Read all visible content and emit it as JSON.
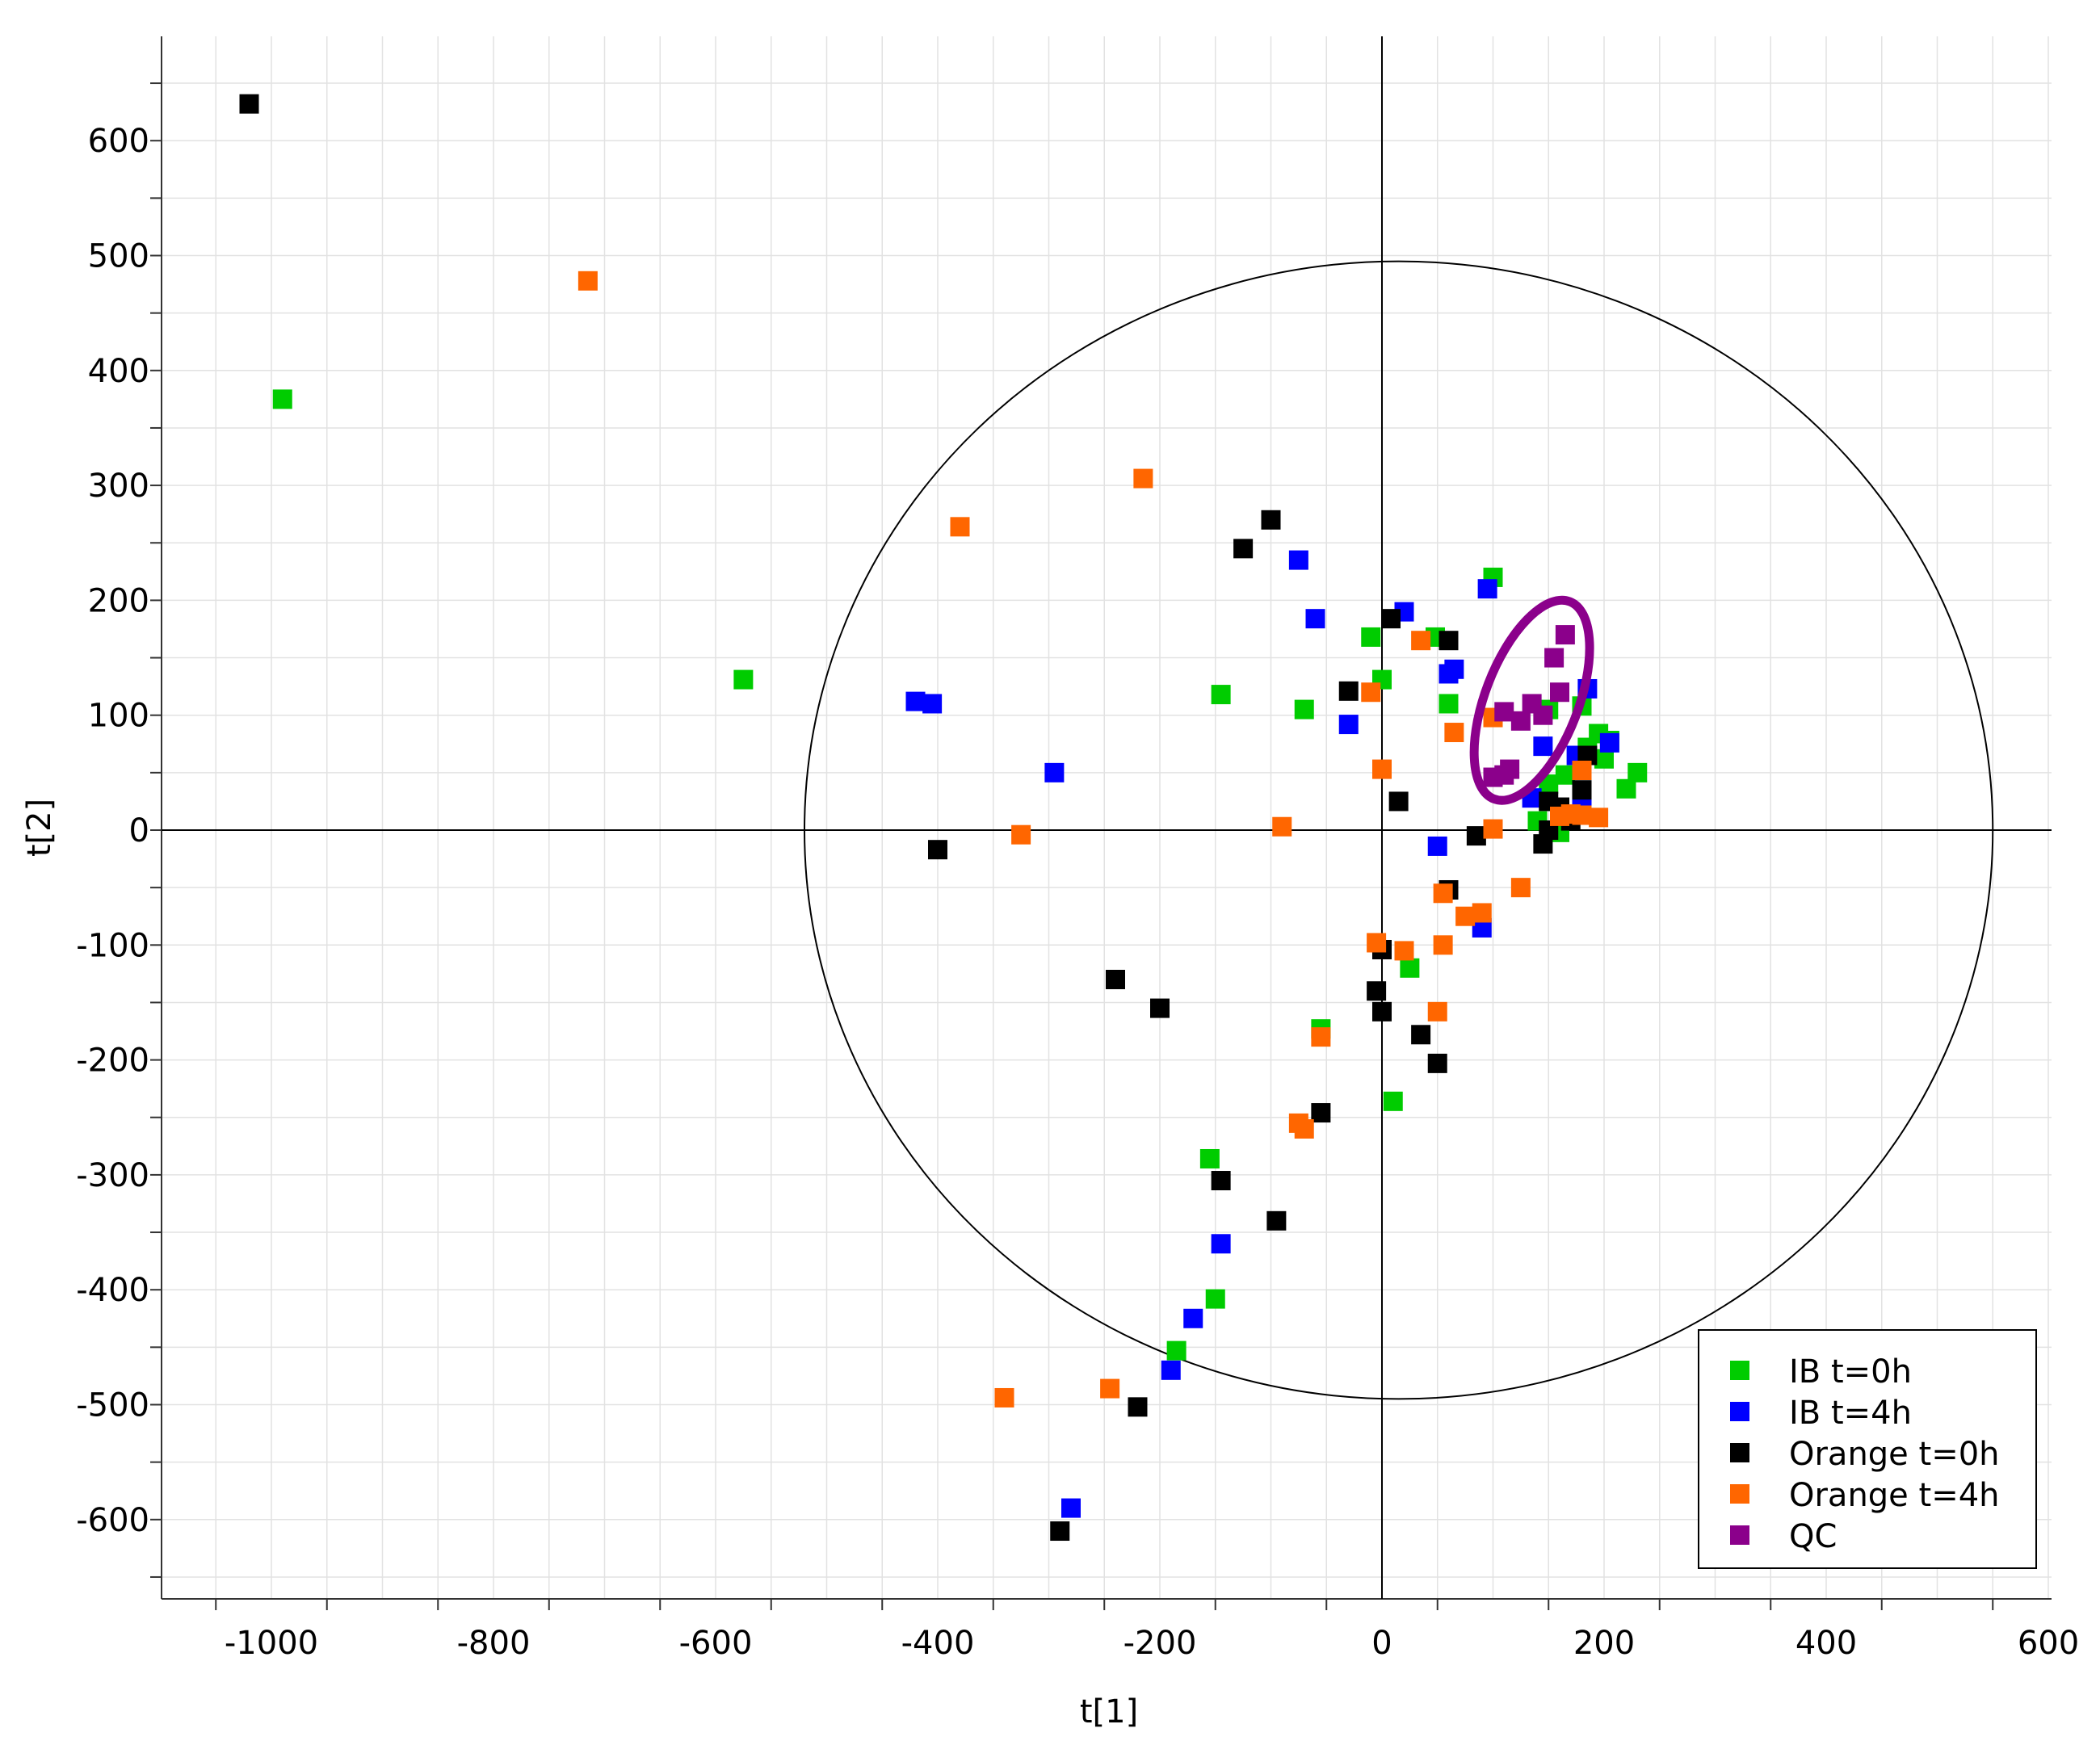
{
  "chart_data": {
    "type": "scatter",
    "title": "",
    "xlabel": "t[1]",
    "ylabel": "t[2]",
    "xlim": [
      -1100,
      620
    ],
    "ylim": [
      -670,
      660
    ],
    "x_ticks": [
      -1000,
      -800,
      -600,
      -400,
      -200,
      0,
      200,
      400,
      600
    ],
    "y_ticks": [
      -600,
      -500,
      -400,
      -300,
      -200,
      -100,
      0,
      100,
      200,
      300,
      400,
      500,
      600
    ],
    "grid": true,
    "legend_position": "bottom-right",
    "ellipse": {
      "cx": 15,
      "cy": 0,
      "rx": 535,
      "ry": 495
    },
    "highlight_ellipse": {
      "cx": 135,
      "cy": 113,
      "rx": 42,
      "ry": 92,
      "angle_deg": 21,
      "color": "#8B008B"
    },
    "series": [
      {
        "name": "IB t=0h",
        "color": "#00CC00",
        "points": [
          [
            -990,
            375
          ],
          [
            -575,
            131
          ],
          [
            -145,
            118
          ],
          [
            -70,
            105
          ],
          [
            -10,
            168
          ],
          [
            0,
            131
          ],
          [
            48,
            168
          ],
          [
            60,
            110
          ],
          [
            100,
            220
          ],
          [
            150,
            105
          ],
          [
            180,
            108
          ],
          [
            195,
            84
          ],
          [
            205,
            78
          ],
          [
            200,
            62
          ],
          [
            230,
            50
          ],
          [
            220,
            36
          ],
          [
            185,
            72
          ],
          [
            165,
            48
          ],
          [
            150,
            40
          ],
          [
            140,
            8
          ],
          [
            160,
            -2
          ],
          [
            25,
            -120
          ],
          [
            -55,
            -173
          ],
          [
            10,
            -236
          ],
          [
            -155,
            -286
          ],
          [
            -150,
            -408
          ],
          [
            -185,
            -453
          ]
        ]
      },
      {
        "name": "IB t=4h",
        "color": "#0000FF",
        "points": [
          [
            -420,
            112
          ],
          [
            -405,
            110
          ],
          [
            -295,
            50
          ],
          [
            -75,
            235
          ],
          [
            -60,
            184
          ],
          [
            -30,
            92
          ],
          [
            20,
            190
          ],
          [
            60,
            136
          ],
          [
            65,
            140
          ],
          [
            95,
            210
          ],
          [
            145,
            73
          ],
          [
            175,
            65
          ],
          [
            185,
            123
          ],
          [
            205,
            76
          ],
          [
            180,
            26
          ],
          [
            135,
            28
          ],
          [
            50,
            -14
          ],
          [
            90,
            -85
          ],
          [
            -145,
            -360
          ],
          [
            -170,
            -425
          ],
          [
            -190,
            -470
          ],
          [
            -280,
            -590
          ]
        ]
      },
      {
        "name": "Orange t=0h",
        "color": "#000000",
        "points": [
          [
            -1020,
            632
          ],
          [
            -125,
            245
          ],
          [
            -100,
            270
          ],
          [
            -30,
            121
          ],
          [
            8,
            184
          ],
          [
            60,
            165
          ],
          [
            15,
            25
          ],
          [
            -400,
            -17
          ],
          [
            150,
            25
          ],
          [
            160,
            20
          ],
          [
            170,
            8
          ],
          [
            180,
            35
          ],
          [
            185,
            65
          ],
          [
            145,
            -12
          ],
          [
            150,
            0
          ],
          [
            85,
            -5
          ],
          [
            60,
            -52
          ],
          [
            0,
            -104
          ],
          [
            -5,
            -140
          ],
          [
            0,
            -158
          ],
          [
            35,
            -178
          ],
          [
            50,
            -203
          ],
          [
            -240,
            -130
          ],
          [
            -200,
            -155
          ],
          [
            -55,
            -246
          ],
          [
            -145,
            -305
          ],
          [
            -95,
            -340
          ],
          [
            -220,
            -502
          ],
          [
            -290,
            -610
          ]
        ]
      },
      {
        "name": "Orange t=4h",
        "color": "#FF6600",
        "points": [
          [
            -715,
            478
          ],
          [
            -215,
            306
          ],
          [
            -380,
            264
          ],
          [
            35,
            165
          ],
          [
            -10,
            120
          ],
          [
            65,
            85
          ],
          [
            100,
            98
          ],
          [
            0,
            53
          ],
          [
            -90,
            3
          ],
          [
            -325,
            -4
          ],
          [
            100,
            1
          ],
          [
            160,
            12
          ],
          [
            170,
            14
          ],
          [
            180,
            13
          ],
          [
            195,
            11
          ],
          [
            180,
            52
          ],
          [
            55,
            -55
          ],
          [
            90,
            -72
          ],
          [
            75,
            -75
          ],
          [
            125,
            -50
          ],
          [
            55,
            -100
          ],
          [
            -5,
            -98
          ],
          [
            20,
            -105
          ],
          [
            50,
            -158
          ],
          [
            -55,
            -180
          ],
          [
            -75,
            -255
          ],
          [
            -70,
            -260
          ],
          [
            -245,
            -486
          ],
          [
            -340,
            -494
          ]
        ]
      },
      {
        "name": "QC",
        "color": "#8B008B",
        "points": [
          [
            165,
            170
          ],
          [
            155,
            150
          ],
          [
            160,
            120
          ],
          [
            135,
            110
          ],
          [
            145,
            100
          ],
          [
            125,
            95
          ],
          [
            110,
            103
          ],
          [
            115,
            53
          ],
          [
            110,
            48
          ],
          [
            100,
            46
          ]
        ]
      }
    ]
  }
}
